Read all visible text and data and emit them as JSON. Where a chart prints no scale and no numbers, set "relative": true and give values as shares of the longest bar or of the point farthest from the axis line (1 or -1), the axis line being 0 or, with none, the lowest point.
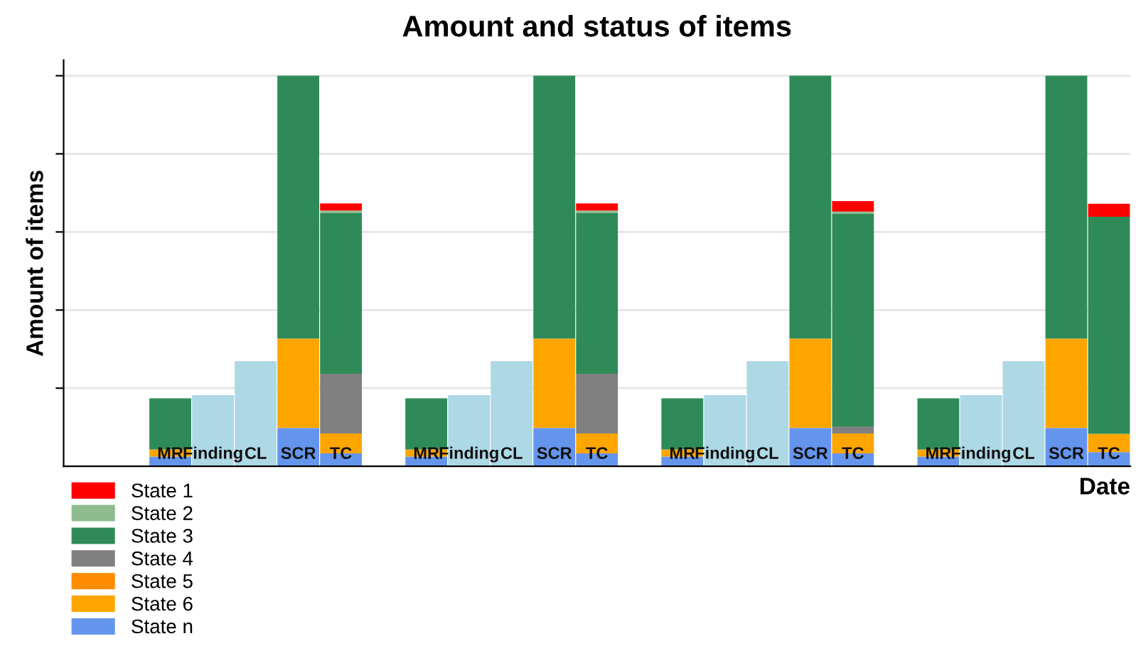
{
  "chart_data": {
    "type": "bar",
    "title": "Amount and status of items",
    "xlabel": "Date",
    "ylabel": "Amount of items",
    "relative": true,
    "stacked": true,
    "grid": "y",
    "legend": "bottom left",
    "tick_labels": "x",
    "categories": [
      null,
      null,
      "MR",
      "Finding",
      "CL",
      "SCR",
      "TC",
      null,
      "MR",
      "Finding",
      "CL",
      "SCR",
      "TC",
      null,
      "MR",
      "Finding",
      "CL",
      "SCR",
      "TC",
      null,
      "MR",
      "Finding",
      "CL",
      "SCR",
      "TC"
    ],
    "series": [
      {
        "color": "#add8e6",
        "values": [
          null,
          null,
          null,
          0.182,
          0.269,
          null,
          null,
          null,
          null,
          0.182,
          0.269,
          null,
          null,
          null,
          null,
          0.182,
          0.269,
          null,
          null,
          null,
          null,
          0.182,
          0.269,
          null,
          null
        ]
      },
      {
        "name": "State n",
        "color": "#6495ed",
        "values": [
          null,
          null,
          0.025,
          null,
          null,
          0.098,
          0.033,
          null,
          0.025,
          null,
          null,
          0.098,
          0.033,
          null,
          0.025,
          null,
          null,
          0.098,
          0.033,
          null,
          0.025,
          null,
          null,
          0.098,
          0.036
        ]
      },
      {
        "name": "State 6",
        "color": "#ffa500",
        "values": [
          null,
          null,
          0.018,
          null,
          null,
          0.229,
          0.051,
          null,
          0.018,
          null,
          null,
          0.229,
          0.051,
          null,
          0.018,
          null,
          null,
          0.229,
          0.051,
          null,
          0.018,
          null,
          null,
          0.229,
          0.047
        ]
      },
      {
        "name": "State 5",
        "color": "#ff8c00",
        "values": [
          null,
          null,
          null,
          null,
          null,
          null,
          null,
          null,
          null,
          null,
          null,
          null,
          null,
          null,
          null,
          null,
          null,
          null,
          null,
          null,
          null,
          null,
          null,
          null,
          null
        ]
      },
      {
        "name": "State 4",
        "color": "#808080",
        "values": [
          null,
          null,
          null,
          null,
          null,
          null,
          0.153,
          null,
          null,
          null,
          null,
          null,
          0.153,
          null,
          null,
          null,
          null,
          null,
          0.018,
          null,
          null,
          null,
          null,
          null,
          null
        ]
      },
      {
        "name": "State 3",
        "color": "#2e8b57",
        "values": [
          null,
          null,
          0.131,
          null,
          null,
          0.673,
          0.411,
          null,
          0.131,
          null,
          null,
          0.673,
          0.411,
          null,
          0.131,
          null,
          null,
          0.673,
          0.545,
          null,
          0.131,
          null,
          null,
          0.673,
          0.556
        ]
      },
      {
        "name": "State 2",
        "color": "#8fbc8f",
        "values": [
          null,
          null,
          null,
          null,
          null,
          null,
          0.007,
          null,
          null,
          null,
          null,
          null,
          0.007,
          null,
          null,
          null,
          null,
          null,
          0.005,
          null,
          null,
          null,
          null,
          null,
          null
        ]
      },
      {
        "name": "State 1",
        "color": "#ff0000",
        "values": [
          null,
          null,
          null,
          null,
          null,
          null,
          0.018,
          null,
          null,
          null,
          null,
          null,
          0.018,
          null,
          null,
          null,
          null,
          null,
          0.027,
          null,
          null,
          null,
          null,
          null,
          0.033
        ]
      }
    ]
  }
}
